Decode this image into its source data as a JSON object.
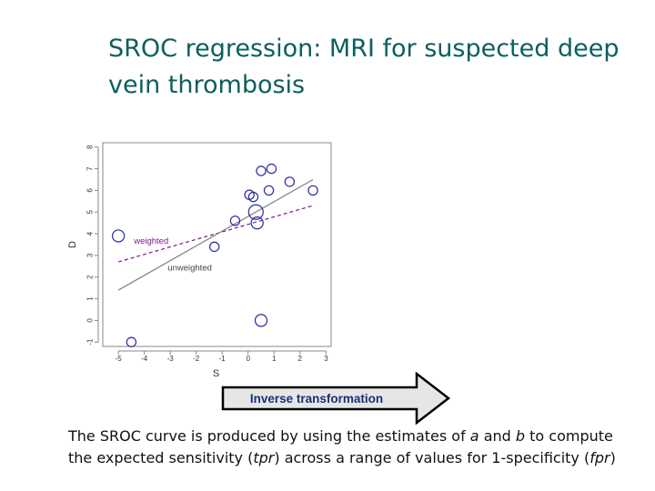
{
  "slide": {
    "title_line1": "SROC regression: MRI for suspected deep",
    "title_line2": "vein thrombosis",
    "arrow_label": "Inverse transformation",
    "caption": {
      "p1": "The SROC curve is produced by using the estimates of ",
      "a": "a",
      "p2": " and ",
      "b": "b",
      "p3": " to compute",
      "p4": "the expected sensitivity (",
      "tpr": "tpr",
      "p5": ") across a range of values for 1-specificity (",
      "fpr": "fpr",
      "p6": ")"
    }
  },
  "chart_data": {
    "type": "scatter",
    "xlabel": "S",
    "ylabel": "D",
    "xlim": [
      -5.6,
      3.2
    ],
    "ylim": [
      -1.2,
      8.2
    ],
    "xticks": [
      -5,
      -4,
      -3,
      -2,
      -1,
      0,
      1,
      2,
      3
    ],
    "yticks": [
      -1,
      0,
      1,
      2,
      3,
      4,
      5,
      6,
      7,
      8
    ],
    "colors": {
      "points": "#2a2aa6",
      "weighted": "#7a1a8a",
      "unweighted": "#808080",
      "axis": "#888888",
      "arrow_fill": "#e6e6e6",
      "label_blue": "#1a2f7a"
    },
    "points": [
      {
        "x": -5.0,
        "y": 3.9,
        "w": 3
      },
      {
        "x": -4.5,
        "y": -1.0,
        "w": 2
      },
      {
        "x": -1.3,
        "y": 3.4,
        "w": 2
      },
      {
        "x": -0.5,
        "y": 4.6,
        "w": 2
      },
      {
        "x": 0.05,
        "y": 5.8,
        "w": 2
      },
      {
        "x": 0.2,
        "y": 5.7,
        "w": 2
      },
      {
        "x": 0.3,
        "y": 5.0,
        "w": 4
      },
      {
        "x": 0.35,
        "y": 4.5,
        "w": 3
      },
      {
        "x": 0.5,
        "y": 0.0,
        "w": 3
      },
      {
        "x": 0.5,
        "y": 6.9,
        "w": 2
      },
      {
        "x": 0.8,
        "y": 6.0,
        "w": 2
      },
      {
        "x": 0.9,
        "y": 7.0,
        "w": 2
      },
      {
        "x": 1.6,
        "y": 6.4,
        "w": 2
      },
      {
        "x": 2.5,
        "y": 6.0,
        "w": 2
      }
    ],
    "lines": [
      {
        "name": "weighted",
        "style": "dashed",
        "x": [
          -5.0,
          2.5
        ],
        "y": [
          2.7,
          5.3
        ]
      },
      {
        "name": "unweighted",
        "style": "solid",
        "x": [
          -5.0,
          2.5
        ],
        "y": [
          1.4,
          6.5
        ]
      }
    ],
    "annotations": [
      {
        "text": "weighted",
        "x": -4.4,
        "y": 3.55
      },
      {
        "text": "unweighted",
        "x": -3.1,
        "y": 2.3
      }
    ]
  }
}
